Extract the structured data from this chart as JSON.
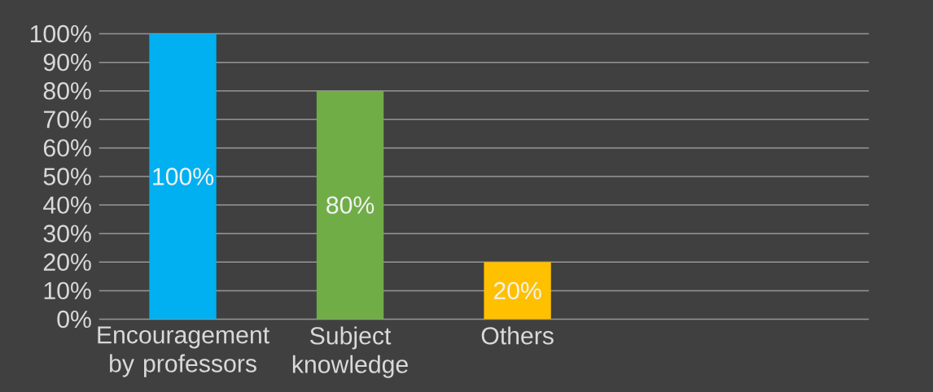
{
  "chart_data": {
    "type": "bar",
    "categories": [
      "Encouragement by professors",
      "Subject knowledge",
      "Others"
    ],
    "values": [
      100,
      80,
      20
    ],
    "colors": [
      "#00b0f0",
      "#70ad47",
      "#ffc000"
    ],
    "value_labels": [
      "100%",
      "80%",
      "20%"
    ],
    "ylim": [
      0,
      100
    ],
    "yticks": [
      {
        "value": 0,
        "label": "0%"
      },
      {
        "value": 10,
        "label": "10%"
      },
      {
        "value": 20,
        "label": "20%"
      },
      {
        "value": 30,
        "label": "30%"
      },
      {
        "value": 40,
        "label": "40%"
      },
      {
        "value": 50,
        "label": "50%"
      },
      {
        "value": 60,
        "label": "60%"
      },
      {
        "value": 70,
        "label": "70%"
      },
      {
        "value": 80,
        "label": "80%"
      },
      {
        "value": 90,
        "label": "90%"
      },
      {
        "value": 100,
        "label": "100%"
      }
    ],
    "grid": "y"
  }
}
